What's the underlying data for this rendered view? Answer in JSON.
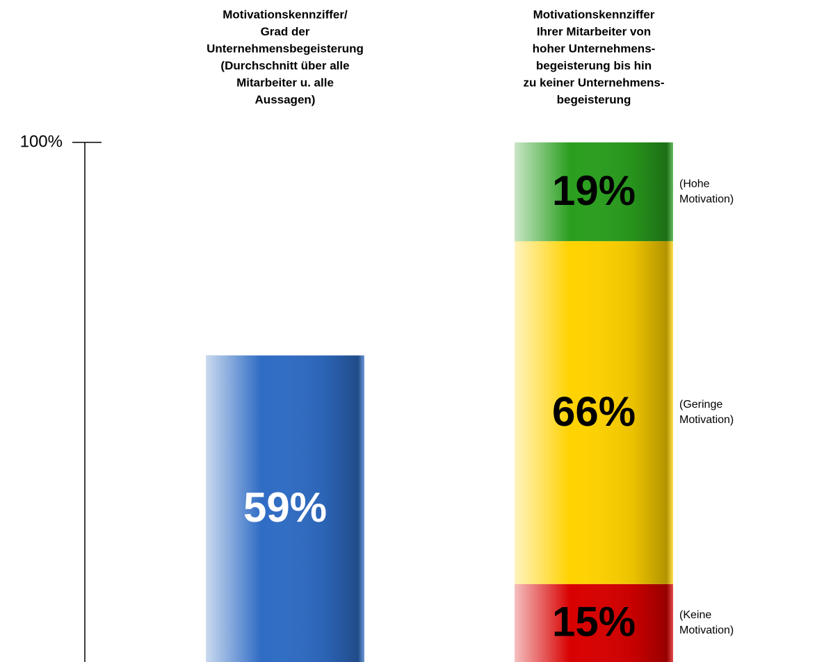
{
  "chart_data": {
    "type": "bar",
    "stacked": true,
    "ylim": [
      0,
      100
    ],
    "yticks": [
      {
        "value": 100,
        "label": "100%"
      }
    ],
    "categories": [
      [
        "Motivationskennziffer/",
        "Grad der",
        "Unternehmensbegeisterung",
        "(Durchschnitt über alle",
        "Mitarbeiter u. alle",
        "Aussagen)"
      ],
      [
        "Motivationskennziffer",
        "Ihrer Mitarbeiter von",
        "hoher Unternehmens-",
        "begeisterung bis hin",
        "zu keiner Unternehmens-",
        "begeisterung"
      ]
    ],
    "series": [
      {
        "color": "#2f6cc4",
        "label_color": "#ffffff",
        "values": [
          59,
          null
        ],
        "value_labels": [
          "59%",
          null
        ]
      },
      {
        "name": [
          "(Keine",
          "Motivation)"
        ],
        "color": "#d80000",
        "label_color": "#000000",
        "values": [
          null,
          15
        ],
        "value_labels": [
          null,
          "15%"
        ]
      },
      {
        "name": [
          "(Geringe",
          "Motivation)"
        ],
        "color": "#ffd200",
        "label_color": "#000000",
        "values": [
          null,
          66
        ],
        "value_labels": [
          null,
          "66%"
        ]
      },
      {
        "name": [
          "(Hohe",
          "Motivation)"
        ],
        "color": "#2a9e1e",
        "label_color": "#000000",
        "values": [
          null,
          19
        ],
        "value_labels": [
          null,
          "19%"
        ]
      }
    ]
  }
}
